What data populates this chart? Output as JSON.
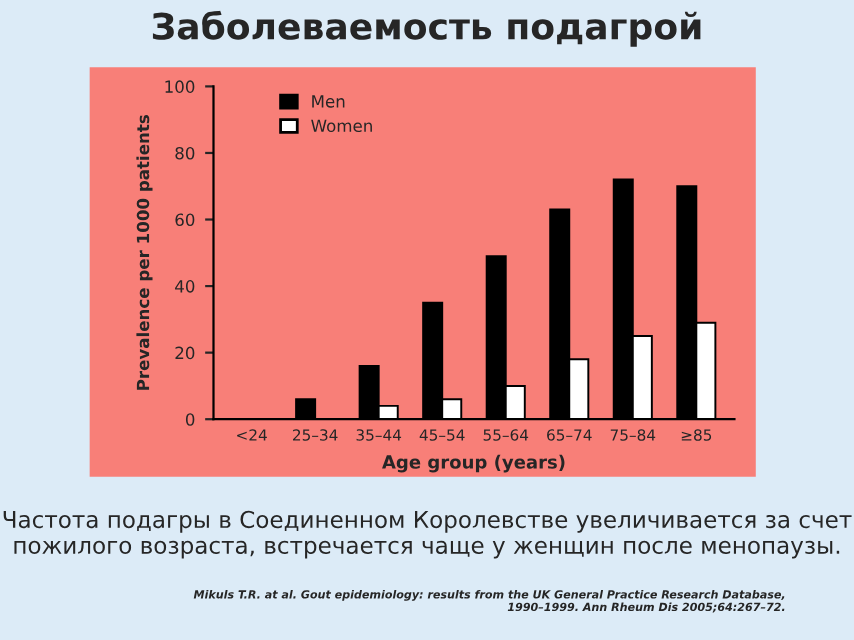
{
  "chart_data": {
    "type": "bar",
    "title": "Заболеваемость подагрой",
    "xlabel": "Age group (years)",
    "ylabel": "Prevalence per 1000 patients",
    "categories": [
      "<24",
      "25–34",
      "35–44",
      "45–54",
      "55–64",
      "65–74",
      "75–84",
      "≥85"
    ],
    "series": [
      {
        "name": "Men",
        "color": "#000000",
        "values": [
          null,
          6,
          16,
          35,
          49,
          63,
          72,
          70
        ]
      },
      {
        "name": "Women",
        "color": "#ffffff",
        "values": [
          null,
          null,
          4,
          6,
          10,
          18,
          25,
          29
        ]
      }
    ],
    "ylim": [
      0,
      100
    ],
    "yticks": [
      0,
      20,
      40,
      60,
      80,
      100
    ],
    "grid": false,
    "legend": "top left",
    "annotations": [
      "Частота подагры в Соединенном Королевстве увеличивается за счет пожилого возраста, встречается чаще у женщин после менопаузы.",
      "Mikuls T.R. at al. Gout epidemiology: results from the UK General Practice Research Database,\n1990–1999. Ann Rheum Dis 2005;64:267–72."
    ]
  }
}
